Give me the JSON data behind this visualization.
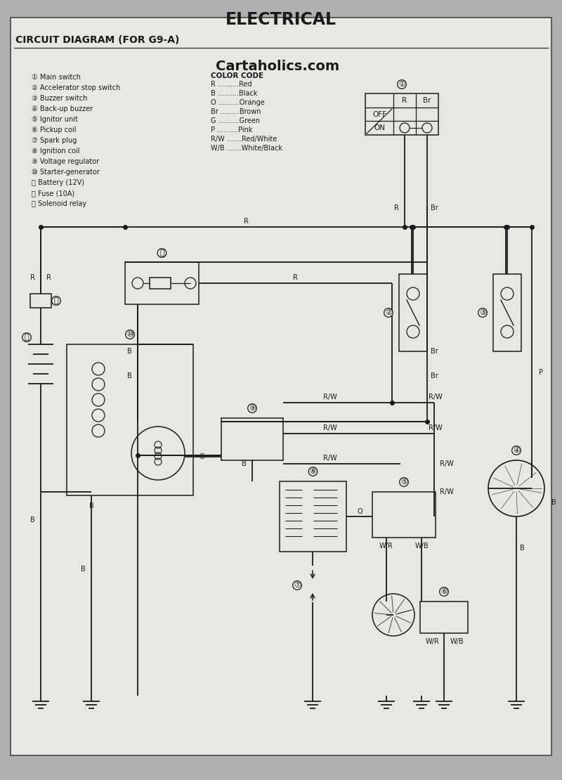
{
  "title": "ELECTRICAL",
  "subtitle": "CIRCUIT DIAGRAM (FOR G9-A)",
  "watermark": "Cartaholics.com",
  "bg_color": "#b0b0b0",
  "paper_color": "#e8e6e0",
  "legend_items": [
    "① Main switch",
    "② Accelerator stop switch",
    "③ Buzzer switch",
    "④ Back-up buzzer",
    "⑤ Ignitor unit",
    "⑥ Pickup coil",
    "⑦ Spark plug",
    "⑧ Ignition coil",
    "⑨ Voltage regulator",
    "⑩ Starter-generator",
    "⑪ Battery (12V)",
    "⑫ Fuse (10A)",
    "⑬ Solenoid relay"
  ],
  "color_code_title": "COLOR CODE",
  "color_code_entries": [
    [
      "R",
      "Red"
    ],
    [
      "B",
      "Black"
    ],
    [
      "O",
      "Orange"
    ],
    [
      "Br",
      "Brown"
    ],
    [
      "G",
      "Green"
    ],
    [
      "P",
      "Pink"
    ],
    [
      "R/W",
      "Red/White"
    ],
    [
      "W/B",
      "White/Black"
    ]
  ]
}
